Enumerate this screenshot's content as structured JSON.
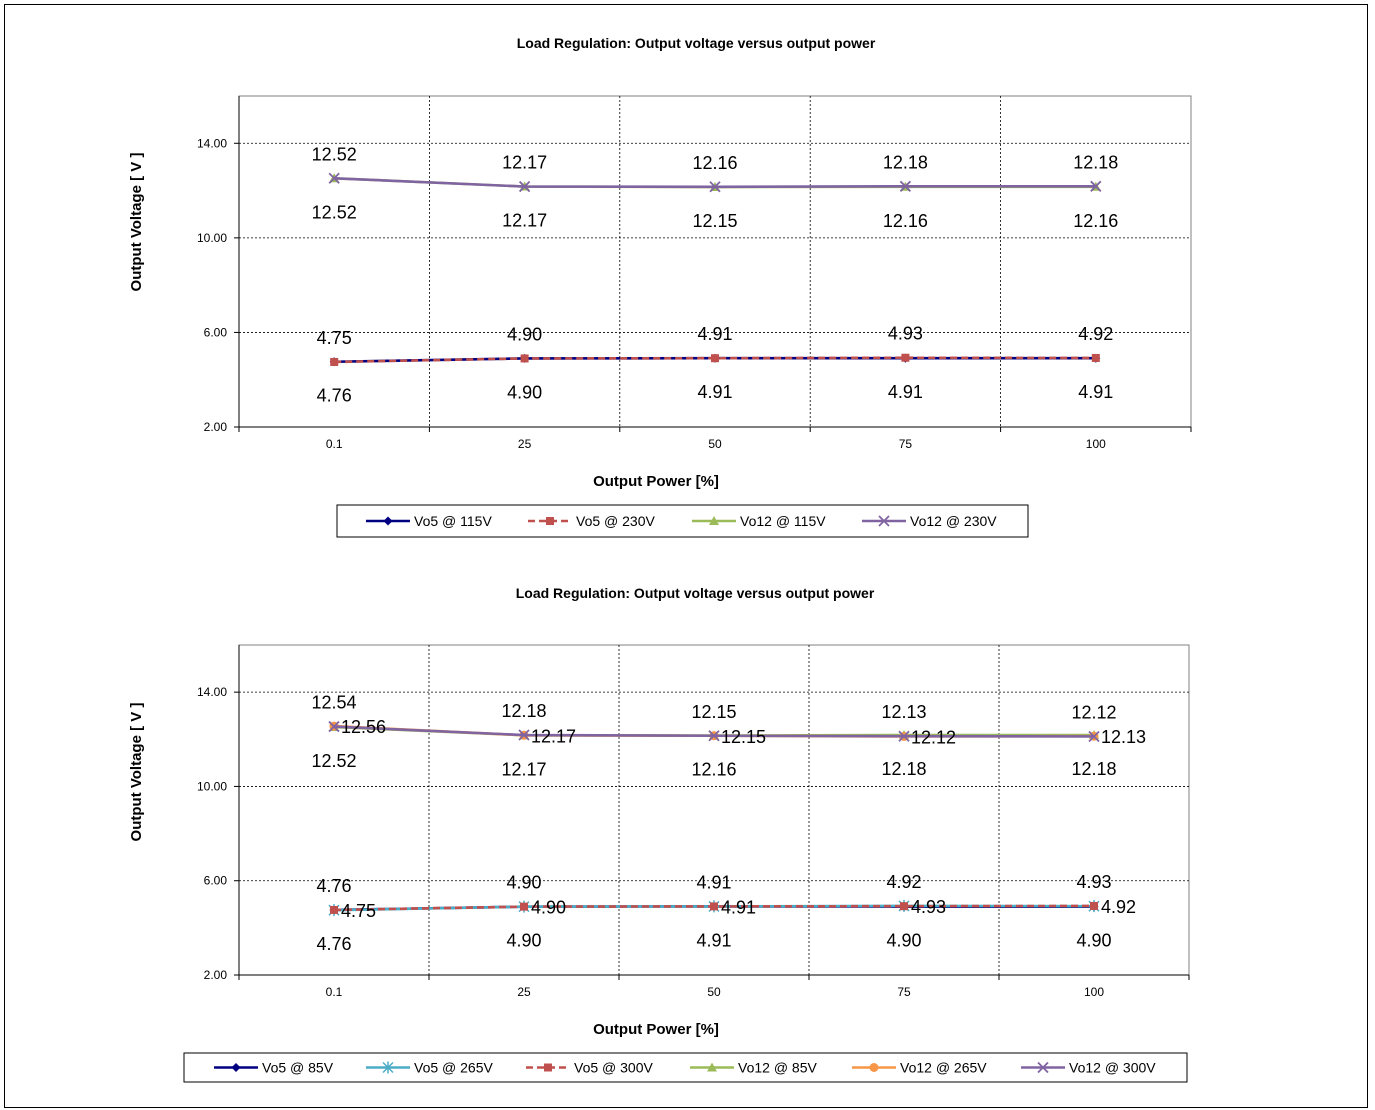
{
  "chart_data": [
    {
      "type": "line",
      "title": "Load Regulation: Output voltage versus output power",
      "xlabel": "Output Power [%]",
      "ylabel": "Output Voltage [ V ]",
      "categories": [
        "0.1",
        "25",
        "50",
        "75",
        "100"
      ],
      "ylim": [
        2,
        16
      ],
      "yticks": [
        "2.00",
        "6.00",
        "10.00",
        "14.00"
      ],
      "grid": true,
      "legend_position": "bottom",
      "series": [
        {
          "name": "Vo5 @ 115V",
          "values": [
            4.76,
            4.9,
            4.91,
            4.91,
            4.91
          ],
          "color": "#000080",
          "marker": "diamond",
          "dash": false
        },
        {
          "name": "Vo5 @ 230V",
          "values": [
            4.75,
            4.9,
            4.91,
            4.93,
            4.92
          ],
          "color": "#c0504d",
          "marker": "square",
          "dash": true
        },
        {
          "name": "Vo12 @ 115V",
          "values": [
            12.52,
            12.17,
            12.15,
            12.16,
            12.16
          ],
          "color": "#9bbb59",
          "marker": "triangle",
          "dash": false
        },
        {
          "name": "Vo12 @ 230V",
          "values": [
            12.52,
            12.17,
            12.16,
            12.18,
            12.18
          ],
          "color": "#8064a2",
          "marker": "x",
          "dash": false
        }
      ],
      "labels": [
        {
          "i": 0,
          "v": 12.52,
          "text": "12.52",
          "pos": "above"
        },
        {
          "i": 1,
          "v": 12.17,
          "text": "12.17",
          "pos": "above"
        },
        {
          "i": 2,
          "v": 12.16,
          "text": "12.16",
          "pos": "above"
        },
        {
          "i": 3,
          "v": 12.18,
          "text": "12.18",
          "pos": "above"
        },
        {
          "i": 4,
          "v": 12.18,
          "text": "12.18",
          "pos": "above"
        },
        {
          "i": 0,
          "v": 12.52,
          "text": "12.52",
          "pos": "below"
        },
        {
          "i": 1,
          "v": 12.17,
          "text": "12.17",
          "pos": "below"
        },
        {
          "i": 2,
          "v": 12.15,
          "text": "12.15",
          "pos": "below"
        },
        {
          "i": 3,
          "v": 12.16,
          "text": "12.16",
          "pos": "below"
        },
        {
          "i": 4,
          "v": 12.16,
          "text": "12.16",
          "pos": "below"
        },
        {
          "i": 0,
          "v": 4.75,
          "text": "4.75",
          "pos": "above"
        },
        {
          "i": 1,
          "v": 4.9,
          "text": "4.90",
          "pos": "above"
        },
        {
          "i": 2,
          "v": 4.91,
          "text": "4.91",
          "pos": "above"
        },
        {
          "i": 3,
          "v": 4.93,
          "text": "4.93",
          "pos": "above"
        },
        {
          "i": 4,
          "v": 4.92,
          "text": "4.92",
          "pos": "above"
        },
        {
          "i": 0,
          "v": 4.76,
          "text": "4.76",
          "pos": "below"
        },
        {
          "i": 1,
          "v": 4.9,
          "text": "4.90",
          "pos": "below"
        },
        {
          "i": 2,
          "v": 4.91,
          "text": "4.91",
          "pos": "below"
        },
        {
          "i": 3,
          "v": 4.91,
          "text": "4.91",
          "pos": "below"
        },
        {
          "i": 4,
          "v": 4.91,
          "text": "4.91",
          "pos": "below"
        }
      ]
    },
    {
      "type": "line",
      "title": "Load Regulation: Output voltage versus output power",
      "xlabel": "Output Power [%]",
      "ylabel": "Output Voltage [ V ]",
      "categories": [
        "0.1",
        "25",
        "50",
        "75",
        "100"
      ],
      "ylim": [
        2,
        16
      ],
      "yticks": [
        "2.00",
        "6.00",
        "10.00",
        "14.00"
      ],
      "grid": true,
      "legend_position": "bottom",
      "series": [
        {
          "name": "Vo5 @ 85V",
          "values": [
            4.76,
            4.9,
            4.91,
            4.9,
            4.9
          ],
          "color": "#000080",
          "marker": "diamond",
          "dash": false
        },
        {
          "name": "Vo5 @ 265V",
          "values": [
            4.75,
            4.9,
            4.91,
            4.93,
            4.92
          ],
          "color": "#4bacc6",
          "marker": "star",
          "dash": false
        },
        {
          "name": "Vo5 @ 300V",
          "values": [
            4.76,
            4.9,
            4.91,
            4.92,
            4.93
          ],
          "color": "#c0504d",
          "marker": "square",
          "dash": true
        },
        {
          "name": "Vo12 @ 85V",
          "values": [
            12.52,
            12.17,
            12.16,
            12.18,
            12.18
          ],
          "color": "#9bbb59",
          "marker": "triangle",
          "dash": false
        },
        {
          "name": "Vo12 @ 265V",
          "values": [
            12.56,
            12.17,
            12.15,
            12.12,
            12.13
          ],
          "color": "#f79646",
          "marker": "circle",
          "dash": false
        },
        {
          "name": "Vo12 @ 300V",
          "values": [
            12.54,
            12.18,
            12.15,
            12.13,
            12.12
          ],
          "color": "#8064a2",
          "marker": "x",
          "dash": false
        }
      ],
      "labels": [
        {
          "i": 0,
          "v": 12.54,
          "text": "12.54",
          "pos": "above"
        },
        {
          "i": 1,
          "v": 12.18,
          "text": "12.18",
          "pos": "above"
        },
        {
          "i": 2,
          "v": 12.15,
          "text": "12.15",
          "pos": "above"
        },
        {
          "i": 3,
          "v": 12.13,
          "text": "12.13",
          "pos": "above"
        },
        {
          "i": 4,
          "v": 12.12,
          "text": "12.12",
          "pos": "above"
        },
        {
          "i": 0,
          "v": 12.56,
          "text": "12.56",
          "pos": "right"
        },
        {
          "i": 1,
          "v": 12.17,
          "text": "12.17",
          "pos": "right"
        },
        {
          "i": 2,
          "v": 12.15,
          "text": "12.15",
          "pos": "right"
        },
        {
          "i": 3,
          "v": 12.12,
          "text": "12.12",
          "pos": "right"
        },
        {
          "i": 4,
          "v": 12.13,
          "text": "12.13",
          "pos": "right"
        },
        {
          "i": 0,
          "v": 12.52,
          "text": "12.52",
          "pos": "below"
        },
        {
          "i": 1,
          "v": 12.17,
          "text": "12.17",
          "pos": "below"
        },
        {
          "i": 2,
          "v": 12.16,
          "text": "12.16",
          "pos": "below"
        },
        {
          "i": 3,
          "v": 12.18,
          "text": "12.18",
          "pos": "below"
        },
        {
          "i": 4,
          "v": 12.18,
          "text": "12.18",
          "pos": "below"
        },
        {
          "i": 0,
          "v": 4.76,
          "text": "4.76",
          "pos": "above"
        },
        {
          "i": 1,
          "v": 4.9,
          "text": "4.90",
          "pos": "above"
        },
        {
          "i": 2,
          "v": 4.91,
          "text": "4.91",
          "pos": "above"
        },
        {
          "i": 3,
          "v": 4.92,
          "text": "4.92",
          "pos": "above"
        },
        {
          "i": 4,
          "v": 4.93,
          "text": "4.93",
          "pos": "above"
        },
        {
          "i": 0,
          "v": 4.75,
          "text": "4.75",
          "pos": "right"
        },
        {
          "i": 1,
          "v": 4.9,
          "text": "4.90",
          "pos": "right"
        },
        {
          "i": 2,
          "v": 4.91,
          "text": "4.91",
          "pos": "right"
        },
        {
          "i": 3,
          "v": 4.93,
          "text": "4.93",
          "pos": "right"
        },
        {
          "i": 4,
          "v": 4.92,
          "text": "4.92",
          "pos": "right"
        },
        {
          "i": 0,
          "v": 4.76,
          "text": "4.76",
          "pos": "below"
        },
        {
          "i": 1,
          "v": 4.9,
          "text": "4.90",
          "pos": "below"
        },
        {
          "i": 2,
          "v": 4.91,
          "text": "4.91",
          "pos": "below"
        },
        {
          "i": 3,
          "v": 4.9,
          "text": "4.90",
          "pos": "below"
        },
        {
          "i": 4,
          "v": 4.9,
          "text": "4.90",
          "pos": "below"
        }
      ]
    }
  ]
}
